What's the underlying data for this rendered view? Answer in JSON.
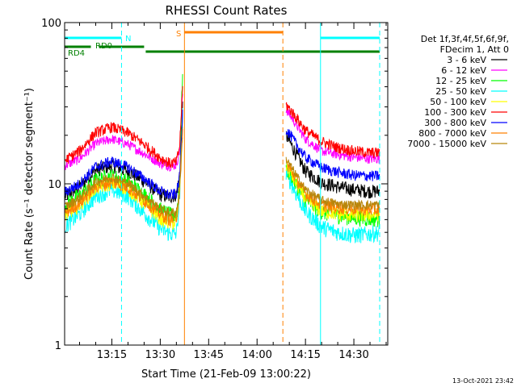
{
  "chart_data": {
    "type": "line",
    "title": "RHESSI Count Rates",
    "xlabel": "Start Time (21-Feb-09 13:00:22)",
    "ylabel": "Count Rate (s⁻¹ detector segment⁻¹)",
    "ylog": true,
    "ylim": [
      1,
      100
    ],
    "xlim": [
      "13:00:22",
      "14:40:30"
    ],
    "x_unit": "clock time HH:MM",
    "x_ticks": [
      "13:15",
      "13:30",
      "13:45",
      "14:00",
      "14:15",
      "14:30"
    ],
    "y_ticks": [
      "1",
      "10",
      "100"
    ],
    "timestamp": "13-Oct-2021 23:42",
    "legend": {
      "placement": "right",
      "header": [
        "Det 1f,3f,4f,5f,6f,9f,",
        "FDecim 1, Att 0"
      ]
    },
    "flag_bars": [
      {
        "label": "N",
        "color": "#00ffff",
        "segments": [
          [
            "13:00:22",
            "13:18:00"
          ],
          [
            "14:19:40",
            "14:38:00"
          ]
        ]
      },
      {
        "label": "RD0",
        "color": "#008000",
        "segments": [
          [
            "13:25:30",
            "14:38:00"
          ]
        ]
      },
      {
        "label": "RD4",
        "color": "#008000",
        "segments": [
          [
            "13:00:22",
            "13:08:30"
          ],
          [
            "13:11:00",
            "13:25:00"
          ]
        ]
      },
      {
        "label": "S",
        "color": "#ff8000",
        "segments": [
          [
            "13:37:30",
            "14:08:00"
          ]
        ]
      }
    ],
    "markers": [
      {
        "time": "13:00:22",
        "color": "#00ffff",
        "style": "solid"
      },
      {
        "time": "13:18:00",
        "color": "#00ffff",
        "style": "dashed"
      },
      {
        "time": "13:37:30",
        "color": "#ff8000",
        "style": "solid"
      },
      {
        "time": "14:08:00",
        "color": "#ff8000",
        "style": "dashed"
      },
      {
        "time": "14:19:40",
        "color": "#00ffff",
        "style": "solid"
      },
      {
        "time": "14:38:00",
        "color": "#00ffff",
        "style": "dashed"
      }
    ],
    "series": [
      {
        "name": "3 - 6 keV",
        "color": "#000000",
        "noise": 0.1,
        "segments": [
          [
            [
              "13:00:30",
              8.4
            ],
            [
              "13:05",
              9.6
            ],
            [
              "13:10",
              12.2
            ],
            [
              "13:15",
              13.0
            ],
            [
              "13:20",
              12.0
            ],
            [
              "13:25",
              10.4
            ],
            [
              "13:30",
              8.6
            ],
            [
              "13:33",
              8.3
            ],
            [
              "13:35",
              8.6
            ],
            [
              "13:36",
              11
            ],
            [
              "13:37",
              32
            ]
          ],
          [
            [
              "14:09",
              20
            ],
            [
              "14:12",
              15.5
            ],
            [
              "14:15",
              12.0
            ],
            [
              "14:20",
              10.2
            ],
            [
              "14:25",
              9.6
            ],
            [
              "14:30",
              9.2
            ],
            [
              "14:35",
              9.0
            ],
            [
              "14:38",
              9.0
            ]
          ]
        ]
      },
      {
        "name": "6 - 12 keV",
        "color": "#ff00ff",
        "noise": 0.07,
        "segments": [
          [
            [
              "13:00:30",
              13.0
            ],
            [
              "13:05",
              14.3
            ],
            [
              "13:10",
              17.8
            ],
            [
              "13:15",
              19.0
            ],
            [
              "13:20",
              17.6
            ],
            [
              "13:25",
              15.4
            ],
            [
              "13:30",
              13.4
            ],
            [
              "13:33",
              12.9
            ],
            [
              "13:35",
              13.1
            ],
            [
              "13:36",
              16
            ],
            [
              "13:37",
              40
            ]
          ],
          [
            [
              "14:09",
              29
            ],
            [
              "14:12",
              23.5
            ],
            [
              "14:15",
              19.0
            ],
            [
              "14:20",
              16.0
            ],
            [
              "14:25",
              15.2
            ],
            [
              "14:30",
              14.6
            ],
            [
              "14:35",
              14.3
            ],
            [
              "14:38",
              14.3
            ]
          ]
        ]
      },
      {
        "name": "12 - 25 keV",
        "color": "#00ff00",
        "noise": 0.12,
        "segments": [
          [
            [
              "13:00:30",
              7.4
            ],
            [
              "13:05",
              8.4
            ],
            [
              "13:10",
              10.5
            ],
            [
              "13:15",
              11.2
            ],
            [
              "13:20",
              10.3
            ],
            [
              "13:25",
              8.6
            ],
            [
              "13:30",
              6.9
            ],
            [
              "13:33",
              6.4
            ],
            [
              "13:35",
              6.4
            ],
            [
              "13:36",
              10
            ],
            [
              "13:37",
              60
            ]
          ],
          [
            [
              "14:09",
              12.5
            ],
            [
              "14:12",
              10.0
            ],
            [
              "14:15",
              8.0
            ],
            [
              "14:20",
              6.7
            ],
            [
              "14:25",
              6.4
            ],
            [
              "14:30",
              6.2
            ],
            [
              "14:35",
              6.1
            ],
            [
              "14:38",
              6.1
            ]
          ]
        ]
      },
      {
        "name": "25 - 50 keV",
        "color": "#00ffff",
        "noise": 0.12,
        "segments": [
          [
            [
              "13:00:30",
              5.5
            ],
            [
              "13:05",
              6.5
            ],
            [
              "13:10",
              8.4
            ],
            [
              "13:15",
              9.2
            ],
            [
              "13:20",
              8.4
            ],
            [
              "13:25",
              6.6
            ],
            [
              "13:30",
              5.3
            ],
            [
              "13:33",
              4.9
            ],
            [
              "13:35",
              4.9
            ],
            [
              "13:36",
              8
            ],
            [
              "13:37",
              30
            ]
          ],
          [
            [
              "14:09",
              11.8
            ],
            [
              "14:12",
              8.8
            ],
            [
              "14:15",
              6.8
            ],
            [
              "14:20",
              5.4
            ],
            [
              "14:25",
              5.0
            ],
            [
              "14:30",
              4.8
            ],
            [
              "14:35",
              4.9
            ],
            [
              "14:38",
              5.0
            ]
          ]
        ]
      },
      {
        "name": "50 - 100 keV",
        "color": "#ffff00",
        "noise": 0.1,
        "segments": [
          [
            [
              "13:00:30",
              6.4
            ],
            [
              "13:05",
              7.4
            ],
            [
              "13:10",
              9.4
            ],
            [
              "13:15",
              10.1
            ],
            [
              "13:20",
              9.3
            ],
            [
              "13:25",
              7.6
            ],
            [
              "13:30",
              6.1
            ],
            [
              "13:33",
              5.7
            ],
            [
              "13:35",
              5.7
            ],
            [
              "13:36",
              9
            ],
            [
              "13:37",
              25
            ]
          ],
          [
            [
              "14:09",
              13.0
            ],
            [
              "14:12",
              10.2
            ],
            [
              "14:15",
              8.1
            ],
            [
              "14:20",
              6.8
            ],
            [
              "14:25",
              6.5
            ],
            [
              "14:30",
              6.4
            ],
            [
              "14:35",
              6.4
            ],
            [
              "14:38",
              6.5
            ]
          ]
        ]
      },
      {
        "name": "100 - 300 keV",
        "color": "#ff0000",
        "noise": 0.08,
        "segments": [
          [
            [
              "13:00:30",
              14.0
            ],
            [
              "13:05",
              16.0
            ],
            [
              "13:10",
              20.8
            ],
            [
              "13:15",
              22.5
            ],
            [
              "13:20",
              20.7
            ],
            [
              "13:25",
              17.6
            ],
            [
              "13:30",
              14.5
            ],
            [
              "13:33",
              13.4
            ],
            [
              "13:35",
              13.6
            ],
            [
              "13:36",
              17
            ],
            [
              "13:37",
              42
            ]
          ],
          [
            [
              "14:09",
              31
            ],
            [
              "14:12",
              26.0
            ],
            [
              "14:15",
              21.5
            ],
            [
              "14:20",
              18.3
            ],
            [
              "14:25",
              16.8
            ],
            [
              "14:30",
              16.0
            ],
            [
              "14:35",
              15.6
            ],
            [
              "14:38",
              15.6
            ]
          ]
        ]
      },
      {
        "name": "300 - 800 keV",
        "color": "#0000ff",
        "noise": 0.08,
        "segments": [
          [
            [
              "13:00:30",
              8.9
            ],
            [
              "13:05",
              10.0
            ],
            [
              "13:10",
              12.8
            ],
            [
              "13:15",
              13.8
            ],
            [
              "13:20",
              12.7
            ],
            [
              "13:25",
              10.8
            ],
            [
              "13:30",
              9.0
            ],
            [
              "13:33",
              8.5
            ],
            [
              "13:35",
              8.7
            ],
            [
              "13:36",
              11
            ],
            [
              "13:37",
              30
            ]
          ],
          [
            [
              "14:09",
              22
            ],
            [
              "14:12",
              17.8
            ],
            [
              "14:15",
              14.6
            ],
            [
              "14:20",
              12.6
            ],
            [
              "14:25",
              11.8
            ],
            [
              "14:30",
              11.3
            ],
            [
              "14:35",
              11.2
            ],
            [
              "14:38",
              11.2
            ]
          ]
        ]
      },
      {
        "name": "800 - 7000 keV",
        "color": "#ff8000",
        "noise": 0.09,
        "segments": [
          [
            [
              "13:00:30",
              6.6
            ],
            [
              "13:05",
              7.6
            ],
            [
              "13:10",
              9.6
            ],
            [
              "13:15",
              10.3
            ],
            [
              "13:20",
              9.5
            ],
            [
              "13:25",
              7.9
            ],
            [
              "13:30",
              6.5
            ],
            [
              "13:33",
              6.0
            ],
            [
              "13:35",
              6.1
            ],
            [
              "13:36",
              9
            ],
            [
              "13:37",
              24
            ]
          ],
          [
            [
              "14:09",
              13.5
            ],
            [
              "14:12",
              10.8
            ],
            [
              "14:15",
              8.7
            ],
            [
              "14:20",
              7.4
            ],
            [
              "14:25",
              7.1
            ],
            [
              "14:30",
              7.0
            ],
            [
              "14:35",
              6.9
            ],
            [
              "14:38",
              6.9
            ]
          ]
        ]
      },
      {
        "name": "7000 - 15000 keV",
        "color": "#b8860b",
        "noise": 0.07,
        "segments": [
          [
            [
              "13:00:30",
              7.2
            ],
            [
              "13:05",
              8.2
            ],
            [
              "13:10",
              10.3
            ],
            [
              "13:15",
              11.0
            ],
            [
              "13:20",
              10.1
            ],
            [
              "13:25",
              8.4
            ],
            [
              "13:30",
              7.0
            ],
            [
              "13:33",
              6.6
            ],
            [
              "13:35",
              6.7
            ],
            [
              "13:36",
              9
            ],
            [
              "13:37",
              22
            ]
          ],
          [
            [
              "14:09",
              14.2
            ],
            [
              "14:12",
              11.4
            ],
            [
              "14:15",
              9.2
            ],
            [
              "14:20",
              7.9
            ],
            [
              "14:25",
              7.5
            ],
            [
              "14:30",
              7.4
            ],
            [
              "14:35",
              7.4
            ],
            [
              "14:38",
              7.4
            ]
          ]
        ]
      }
    ]
  }
}
